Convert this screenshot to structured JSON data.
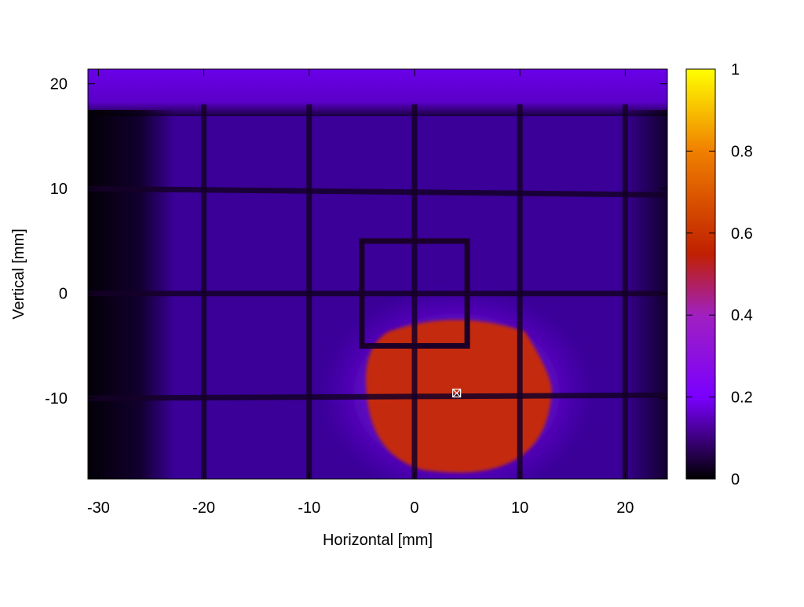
{
  "chart_data": {
    "type": "heatmap",
    "xlabel": "Horizontal [mm]",
    "ylabel": "Vertical [mm]",
    "xlim": [
      -31,
      24
    ],
    "ylim": [
      -17.7,
      21.4
    ],
    "x_ticks": [
      -30,
      -20,
      -10,
      0,
      10,
      20
    ],
    "y_ticks": [
      20,
      10,
      0,
      -10
    ],
    "colorbar": {
      "range": [
        0,
        1
      ],
      "ticks": [
        0,
        0.2,
        0.4,
        0.6,
        0.8,
        1
      ],
      "colormap": [
        "#000000",
        "#7a00ff",
        "#c02000",
        "#f08000",
        "#ffff00"
      ]
    },
    "background_intensity": 0.15,
    "beam_spot": {
      "center_x": 4,
      "center_y": -9.5,
      "intensity": 0.5,
      "x_range": [
        -5,
        13
      ],
      "y_range": [
        -17,
        -2
      ]
    },
    "grid_lines": {
      "vertical_x": [
        -20,
        -10,
        0,
        10,
        20
      ],
      "horizontal_y": [
        10,
        0,
        -10
      ]
    },
    "square_frame": {
      "x_range": [
        -5,
        5
      ],
      "y_range": [
        -5,
        5
      ]
    },
    "marker": {
      "x": 4,
      "y": -9.5
    }
  }
}
